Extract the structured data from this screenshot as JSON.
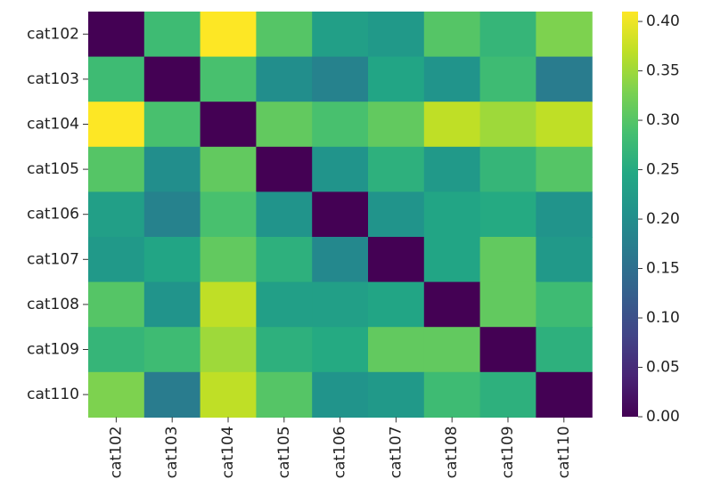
{
  "chart_data": {
    "type": "heatmap",
    "title": "",
    "xlabel": "",
    "ylabel": "",
    "rows": [
      "cat102",
      "cat103",
      "cat104",
      "cat105",
      "cat106",
      "cat107",
      "cat108",
      "cat109",
      "cat110"
    ],
    "columns": [
      "cat102",
      "cat103",
      "cat104",
      "cat105",
      "cat106",
      "cat107",
      "cat108",
      "cat109",
      "cat110"
    ],
    "values": [
      [
        0.0,
        0.28,
        0.41,
        0.3,
        0.23,
        0.22,
        0.3,
        0.27,
        0.33
      ],
      [
        0.28,
        0.0,
        0.29,
        0.2,
        0.18,
        0.24,
        0.21,
        0.28,
        0.17
      ],
      [
        0.41,
        0.29,
        0.0,
        0.31,
        0.29,
        0.31,
        0.37,
        0.35,
        0.37
      ],
      [
        0.3,
        0.2,
        0.31,
        0.0,
        0.21,
        0.26,
        0.22,
        0.27,
        0.3
      ],
      [
        0.23,
        0.18,
        0.29,
        0.21,
        0.0,
        0.21,
        0.24,
        0.25,
        0.21
      ],
      [
        0.22,
        0.24,
        0.31,
        0.26,
        0.19,
        0.0,
        0.24,
        0.31,
        0.22
      ],
      [
        0.3,
        0.21,
        0.37,
        0.23,
        0.23,
        0.24,
        0.0,
        0.31,
        0.28
      ],
      [
        0.27,
        0.28,
        0.35,
        0.26,
        0.25,
        0.31,
        0.31,
        0.0,
        0.26
      ],
      [
        0.33,
        0.17,
        0.37,
        0.3,
        0.21,
        0.22,
        0.28,
        0.26,
        0.0
      ]
    ],
    "colormap": "viridis",
    "vmin": 0.0,
    "vmax": 0.41,
    "colorbar_ticks": [
      "0.00",
      "0.05",
      "0.10",
      "0.15",
      "0.20",
      "0.25",
      "0.30",
      "0.35",
      "0.40"
    ],
    "colorbar_tick_values": [
      0.0,
      0.05,
      0.1,
      0.15,
      0.2,
      0.25,
      0.3,
      0.35,
      0.4
    ],
    "colorbar_position": "right",
    "x_tick_rotation": "vertical",
    "grid": false
  }
}
